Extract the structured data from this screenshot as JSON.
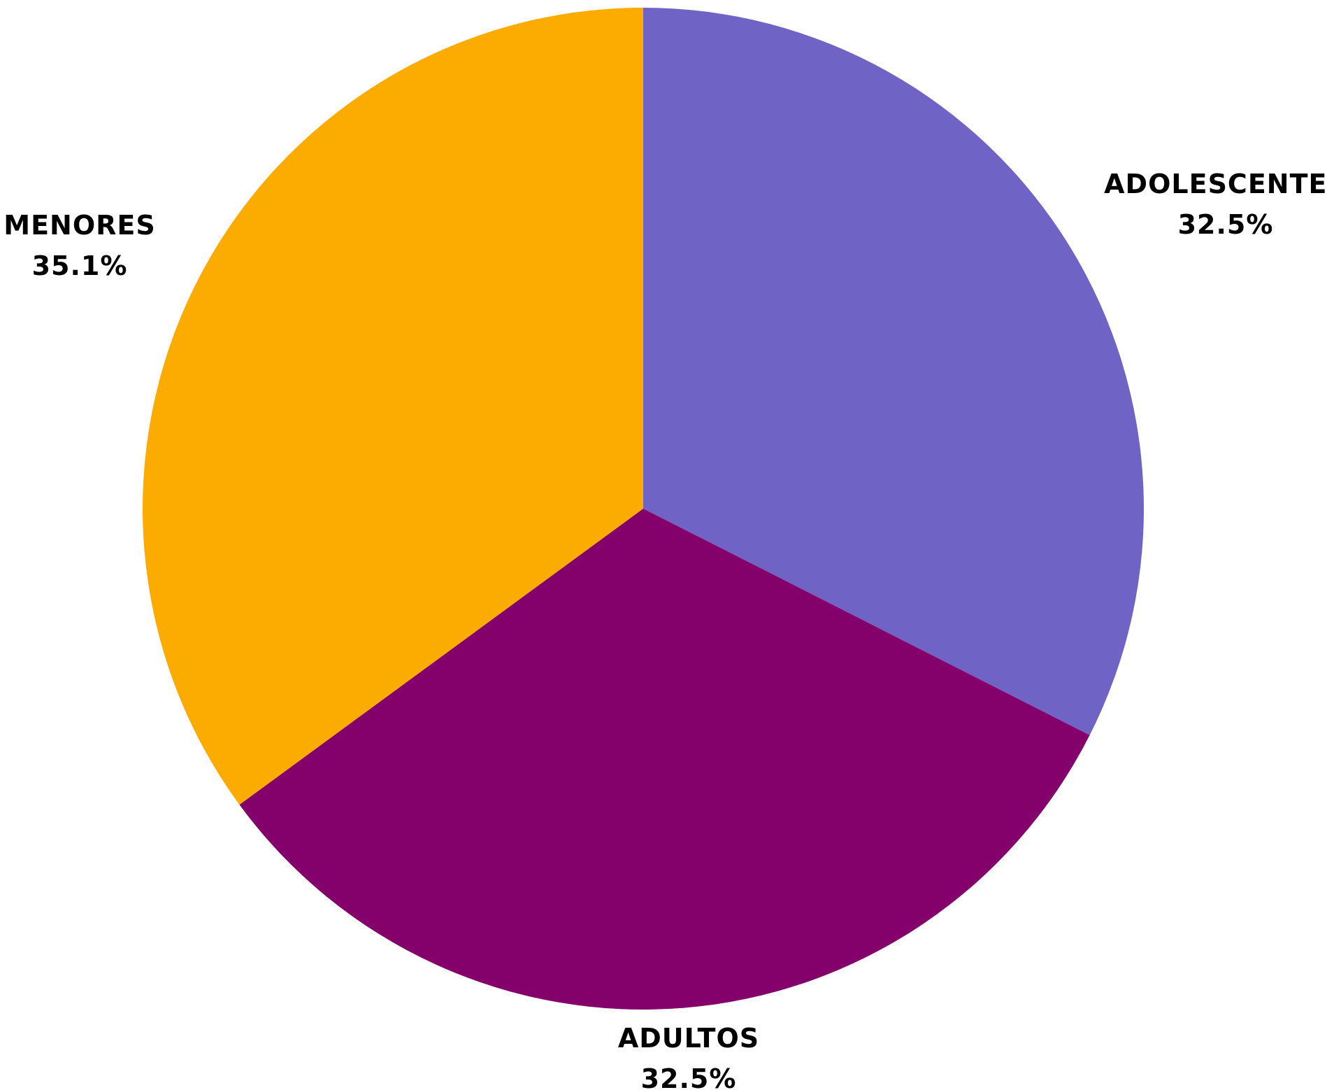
{
  "chart_data": {
    "type": "pie",
    "title": "",
    "start_angle_deg": 0,
    "direction": "clockwise",
    "slices": [
      {
        "label": "ADOLESCENTES",
        "value": 32.5,
        "value_label": "32.5%",
        "color": "#6F63C6"
      },
      {
        "label": "ADULTOS",
        "value": 32.5,
        "value_label": "32.5%",
        "color": "#84006B"
      },
      {
        "label": "MENORES",
        "value": 35.1,
        "value_label": "35.1%",
        "color": "#FCAB00"
      }
    ]
  }
}
